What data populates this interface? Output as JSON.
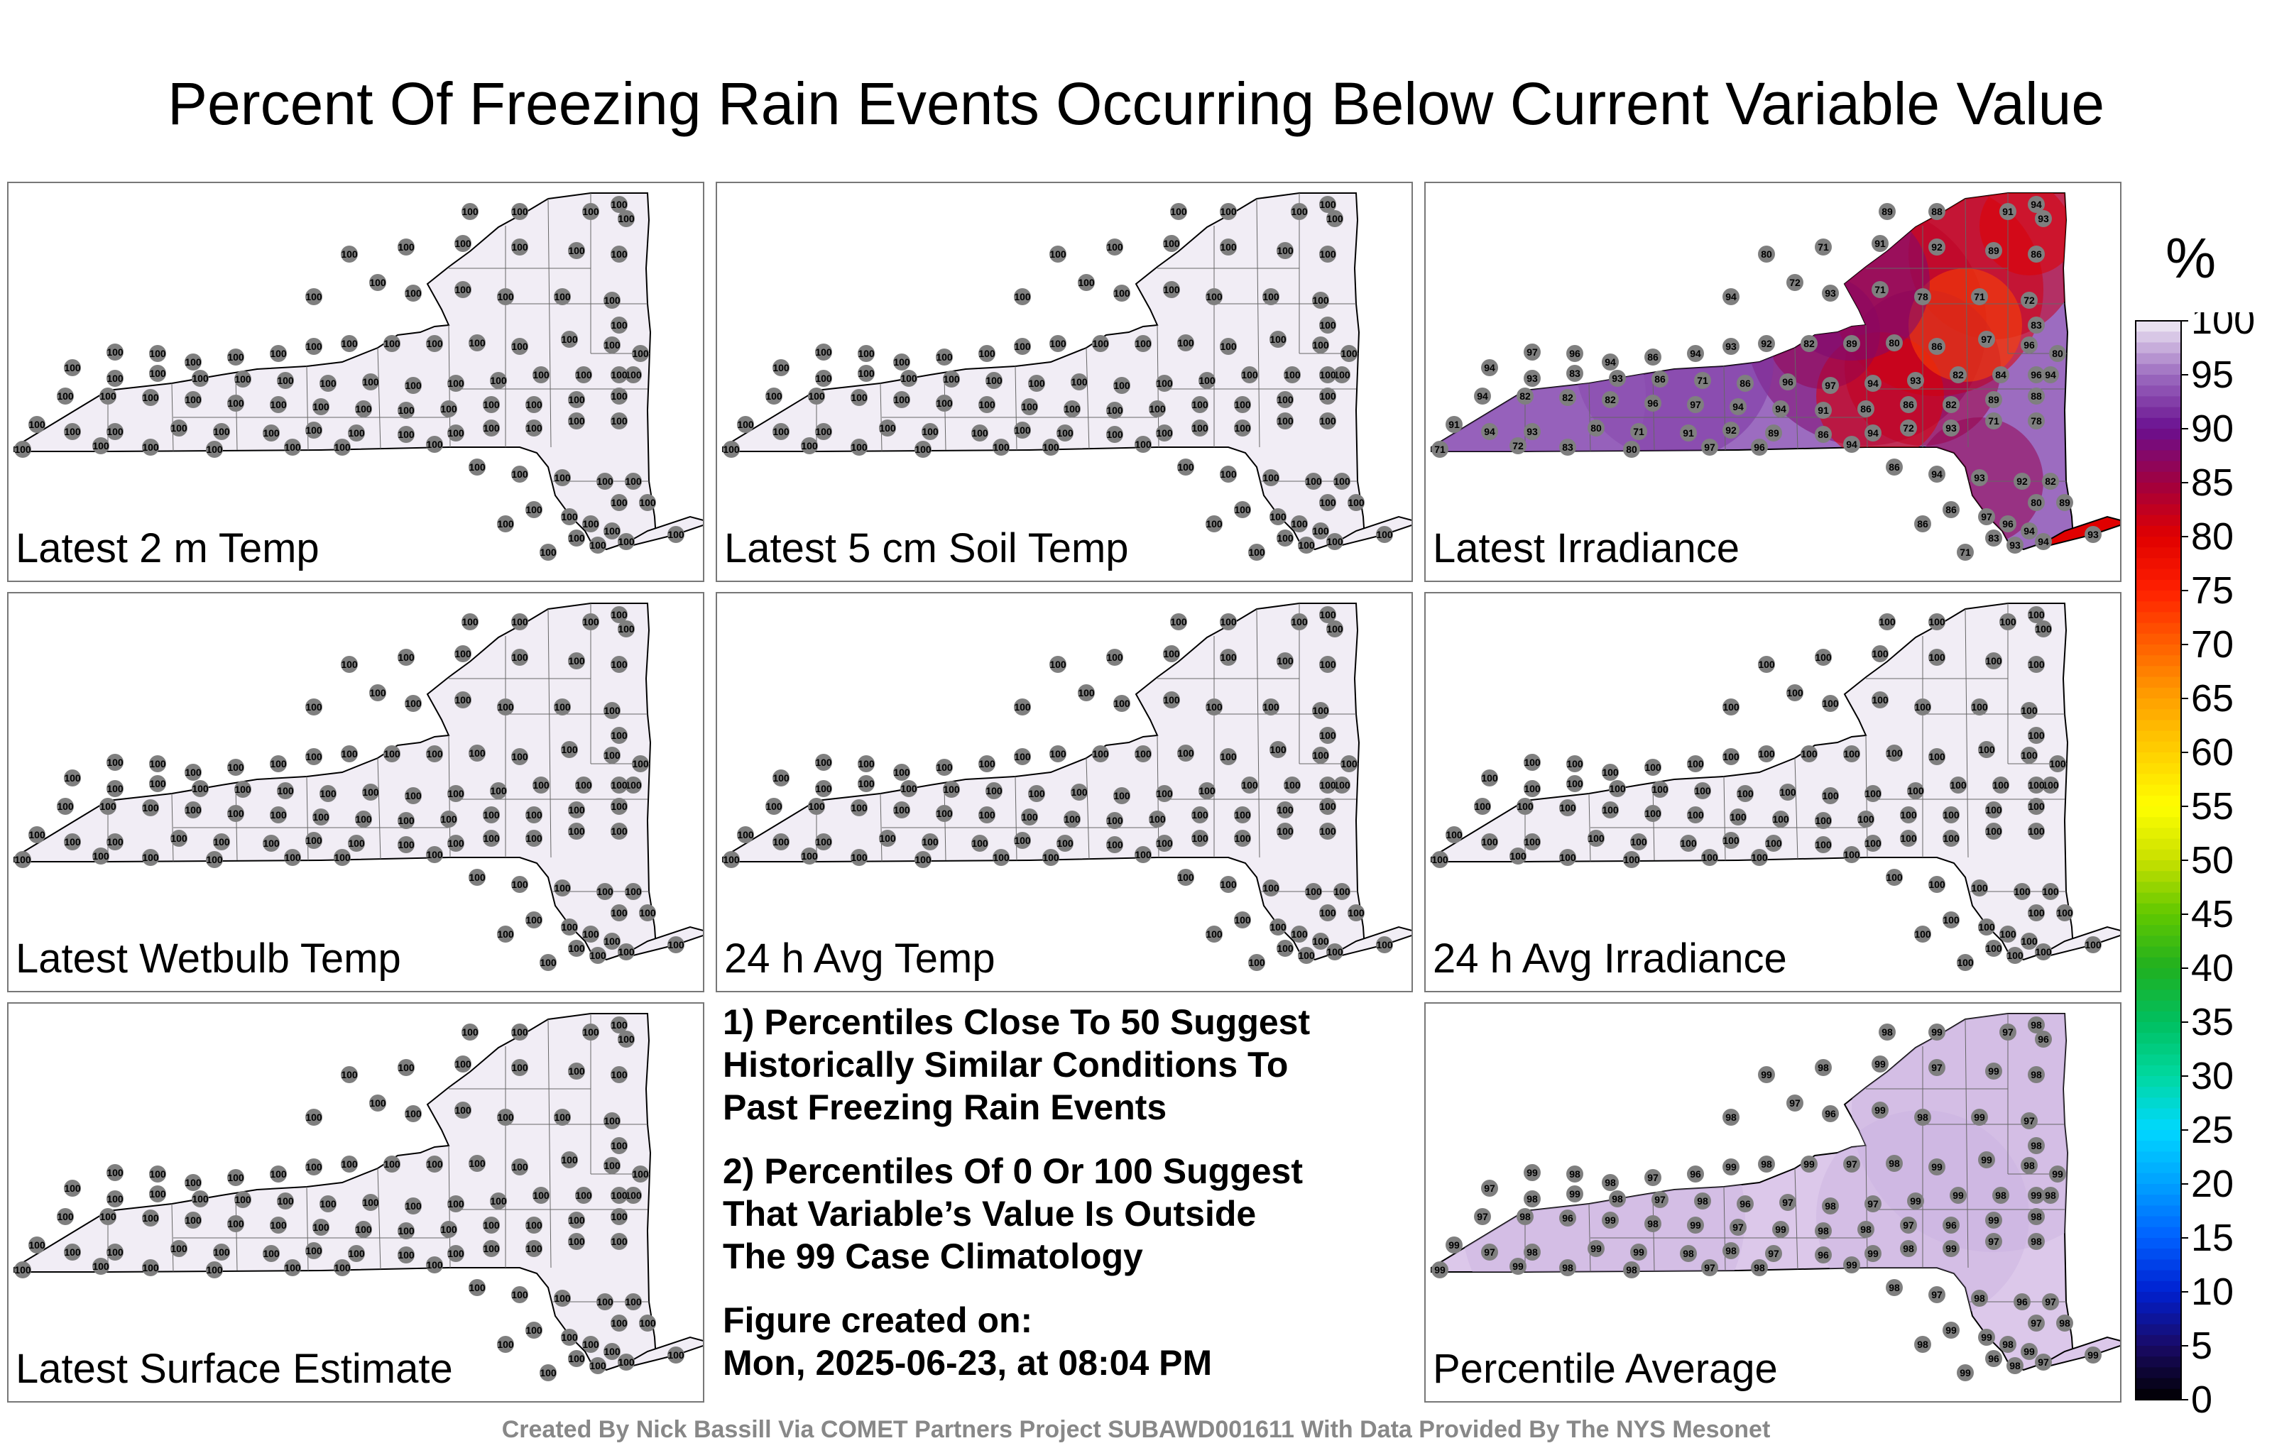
{
  "title": "Percent Of Freezing Rain Events Occurring Below Current Variable Value",
  "panels": [
    {
      "label": "Latest 2 m Temp",
      "mode": "uniform",
      "value": "100"
    },
    {
      "label": "Latest 5 cm Soil Temp",
      "mode": "uniform",
      "value": "100"
    },
    {
      "label": "Latest Irradiance",
      "mode": "irradiance",
      "value": "97"
    },
    {
      "label": "Latest Wetbulb Temp",
      "mode": "uniform",
      "value": "100"
    },
    {
      "label": "24 h Avg Temp",
      "mode": "uniform",
      "value": "100"
    },
    {
      "label": "24 h Avg Irradiance",
      "mode": "uniform",
      "value": "100"
    },
    {
      "label": "Latest Surface Estimate",
      "mode": "uniform",
      "value": "100"
    },
    {
      "label": "Percentile Average",
      "mode": "average",
      "value": "98"
    }
  ],
  "irradiance_station_values": [
    "89",
    "88",
    "91",
    "94",
    "93",
    "80",
    "71",
    "91",
    "92",
    "89",
    "86",
    "94",
    "72",
    "93",
    "71",
    "78",
    "71",
    "72",
    "83",
    "80",
    "97",
    "96",
    "94",
    "86",
    "94",
    "93",
    "92",
    "82",
    "89",
    "80",
    "86",
    "97",
    "96",
    "94",
    "94",
    "93",
    "83",
    "93",
    "86",
    "71",
    "86",
    "96",
    "97",
    "94",
    "93",
    "82",
    "84",
    "96",
    "94",
    "82",
    "82",
    "82",
    "96",
    "97",
    "94",
    "94",
    "91",
    "86",
    "86",
    "82"
  ],
  "average_station_values": [
    "98",
    "99",
    "97",
    "98",
    "96",
    "99",
    "98",
    "99",
    "97",
    "99",
    "98",
    "98",
    "97",
    "96",
    "99",
    "98",
    "99",
    "97",
    "98",
    "99",
    "99",
    "98",
    "98",
    "97",
    "96",
    "99",
    "98",
    "99",
    "97",
    "98",
    "99",
    "99",
    "98",
    "98",
    "97",
    "98",
    "99",
    "98",
    "97",
    "98",
    "96",
    "97",
    "98",
    "97",
    "99",
    "99"
  ],
  "notes": [
    [
      "1) Percentiles Close To 50 Suggest",
      "Historically Similar Conditions To",
      "Past Freezing Rain Events"
    ],
    [
      "2) Percentiles Of 0 Or 100 Suggest",
      "That Variable’s Value Is Outside",
      "The 99 Case Climatology"
    ],
    [
      "Figure created on:",
      "Mon, 2025-06-23, at 08:04 PM"
    ]
  ],
  "footer": "Created By Nick Bassill Via COMET Partners Project SUBAWD001611 With Data Provided By The NYS Mesonet",
  "colorbar": {
    "unit": "%",
    "ticks": [
      "100",
      "95",
      "90",
      "85",
      "80",
      "75",
      "70",
      "65",
      "60",
      "55",
      "50",
      "45",
      "40",
      "35",
      "30",
      "25",
      "20",
      "15",
      "10",
      "5",
      "0"
    ],
    "stops": [
      {
        "v": 0,
        "c": "#000000"
      },
      {
        "v": 5,
        "c": "#1a0a66"
      },
      {
        "v": 10,
        "c": "#0020d0"
      },
      {
        "v": 15,
        "c": "#0060ff"
      },
      {
        "v": 20,
        "c": "#00a0ff"
      },
      {
        "v": 25,
        "c": "#00d8ff"
      },
      {
        "v": 30,
        "c": "#00d8a0"
      },
      {
        "v": 35,
        "c": "#00c060"
      },
      {
        "v": 40,
        "c": "#20b020"
      },
      {
        "v": 45,
        "c": "#60c800"
      },
      {
        "v": 50,
        "c": "#c8e000"
      },
      {
        "v": 55,
        "c": "#ffff00"
      },
      {
        "v": 60,
        "c": "#ffd000"
      },
      {
        "v": 65,
        "c": "#ffa000"
      },
      {
        "v": 70,
        "c": "#ff6000"
      },
      {
        "v": 75,
        "c": "#ff2000"
      },
      {
        "v": 80,
        "c": "#e00000"
      },
      {
        "v": 85,
        "c": "#a00040"
      },
      {
        "v": 90,
        "c": "#6a1090"
      },
      {
        "v": 95,
        "c": "#9c6cc0"
      },
      {
        "v": 100,
        "c": "#f2eef6"
      }
    ]
  },
  "colors": {
    "map_fill_100": "#f1edf5",
    "map_fill_average": "#dcc8ea",
    "station_marker": "#7f7f7f",
    "border": "#000000"
  }
}
